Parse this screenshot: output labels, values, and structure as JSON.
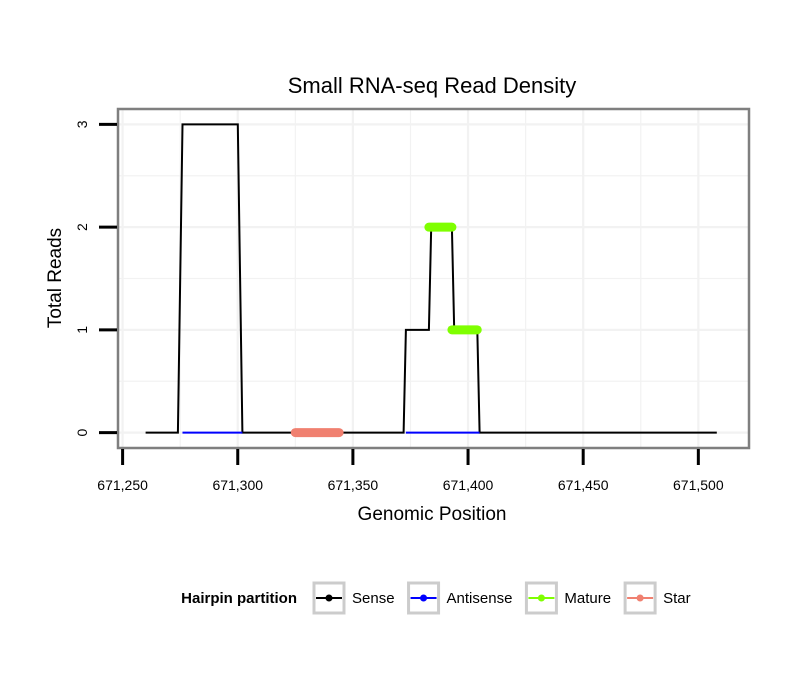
{
  "chart_data": {
    "type": "line",
    "title": "Small RNA-seq Read Density",
    "xlabel": "Genomic Position",
    "ylabel": "Total Reads",
    "xlim": [
      671248,
      671522
    ],
    "ylim": [
      -0.15,
      3.15
    ],
    "x_ticks": [
      671250,
      671300,
      671350,
      671400,
      671450,
      671500
    ],
    "x_tick_labels": [
      "671,250",
      "671,300",
      "671,350",
      "671,400",
      "671,450",
      "671,500"
    ],
    "y_ticks": [
      0,
      1,
      2,
      3
    ],
    "y_tick_labels": [
      "0",
      "1",
      "2",
      "3"
    ],
    "grid": true,
    "legend_position": "bottom",
    "legend_title": "Hairpin partition",
    "legend": [
      {
        "label": "Sense",
        "color": "#000000"
      },
      {
        "label": "Antisense",
        "color": "#0000ff"
      },
      {
        "label": "Mature",
        "color": "#7fff00"
      },
      {
        "label": "Star",
        "color": "#f08070"
      }
    ],
    "series": [
      {
        "name": "Sense",
        "color": "#000000",
        "points": [
          [
            671260,
            0
          ],
          [
            671274,
            0
          ],
          [
            671276,
            3
          ],
          [
            671300,
            3
          ],
          [
            671302,
            0
          ],
          [
            671372,
            0
          ],
          [
            671373,
            1
          ],
          [
            671383,
            1
          ],
          [
            671384,
            2
          ],
          [
            671393,
            2
          ],
          [
            671394,
            1
          ],
          [
            671404,
            1
          ],
          [
            671405,
            0
          ],
          [
            671508,
            0
          ]
        ]
      },
      {
        "name": "Antisense",
        "color": "#0000ff",
        "segments": [
          [
            671276,
            671302,
            0
          ],
          [
            671373,
            671405,
            0
          ]
        ]
      },
      {
        "name": "Mature",
        "color": "#7fff00",
        "segments": [
          [
            671383,
            671393,
            2
          ],
          [
            671393,
            671404,
            1
          ]
        ]
      },
      {
        "name": "Star",
        "color": "#f08070",
        "segments": [
          [
            671325,
            671344,
            0
          ]
        ]
      }
    ]
  }
}
